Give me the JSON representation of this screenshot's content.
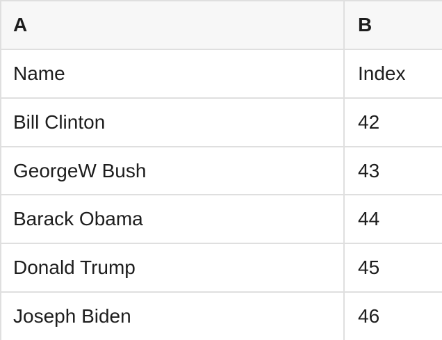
{
  "colors": {
    "header_bg": "#f7f7f7",
    "grid_border": "#dfdfdf",
    "row_bg": "#ffffff",
    "text": "#1d1d1d"
  },
  "spreadsheet": {
    "column_headers": [
      "A",
      "B"
    ],
    "rows": [
      {
        "name": "Name",
        "index": "Index"
      },
      {
        "name": "Bill Clinton",
        "index": "42"
      },
      {
        "name": "GeorgeW Bush",
        "index": "43"
      },
      {
        "name": "Barack Obama",
        "index": "44"
      },
      {
        "name": "Donald Trump",
        "index": "45"
      },
      {
        "name": "Joseph Biden",
        "index": "46"
      }
    ]
  }
}
